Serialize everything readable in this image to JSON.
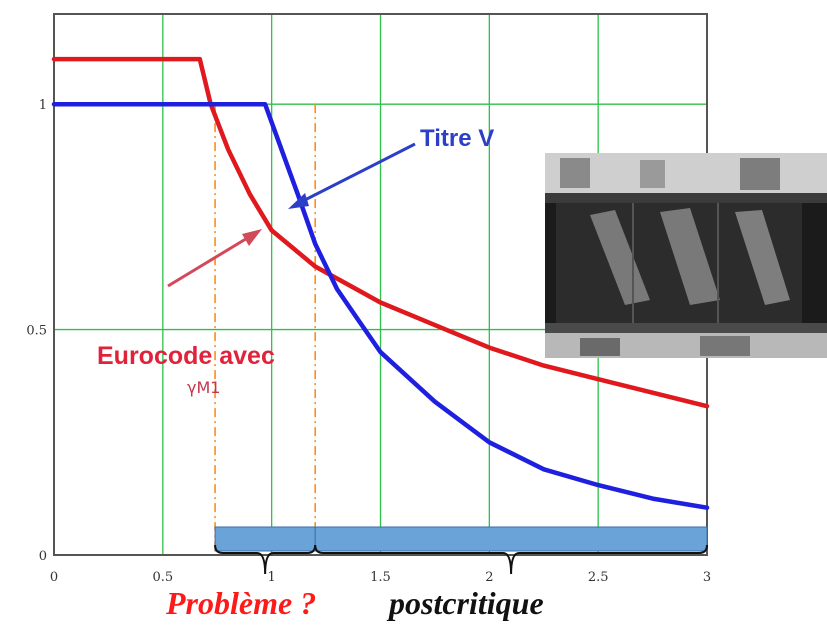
{
  "chart_data": {
    "type": "line",
    "xlim": [
      0,
      3
    ],
    "ylim": [
      0,
      1.2
    ],
    "grid": true,
    "x_ticks": [
      0,
      0.5,
      1,
      1.5,
      2,
      2.5,
      3
    ],
    "x_tick_labels": [
      "0",
      "0.5",
      "1",
      "1.5",
      "2",
      "2.5",
      "3"
    ],
    "y_ticks": [
      0,
      0.5,
      1
    ],
    "y_tick_labels": [
      "0",
      "0.5",
      "1"
    ],
    "series": [
      {
        "name": "Eurocode avec",
        "color": "#e0191e",
        "points": [
          [
            0,
            1.1
          ],
          [
            0.67,
            1.1
          ],
          [
            0.72,
            1.0
          ],
          [
            0.8,
            0.9
          ],
          [
            0.9,
            0.8
          ],
          [
            1.0,
            0.72
          ],
          [
            1.1,
            0.68
          ],
          [
            1.2,
            0.64
          ],
          [
            1.35,
            0.6
          ],
          [
            1.5,
            0.56
          ],
          [
            1.75,
            0.51
          ],
          [
            2.0,
            0.46
          ],
          [
            2.25,
            0.42
          ],
          [
            2.5,
            0.39
          ],
          [
            2.75,
            0.36
          ],
          [
            3.0,
            0.33
          ]
        ]
      },
      {
        "name": "Titre V",
        "color": "#1f1fe0",
        "points": [
          [
            0,
            1.0
          ],
          [
            0.97,
            1.0
          ],
          [
            1.06,
            0.88
          ],
          [
            1.12,
            0.8
          ],
          [
            1.2,
            0.69
          ],
          [
            1.3,
            0.59
          ],
          [
            1.4,
            0.52
          ],
          [
            1.5,
            0.45
          ],
          [
            1.75,
            0.34
          ],
          [
            2.0,
            0.25
          ],
          [
            2.25,
            0.19
          ],
          [
            2.5,
            0.155
          ],
          [
            2.75,
            0.125
          ],
          [
            3.0,
            0.105
          ]
        ]
      }
    ],
    "vlines": [
      0.74,
      1.2
    ],
    "ranges": [
      [
        0.74,
        1.2
      ],
      [
        1.2,
        3.0
      ]
    ]
  },
  "annotations": {
    "titre_v": "Titre V",
    "eurocode": "Eurocode avec",
    "gamma": "γM1"
  },
  "captions": {
    "left": "Problème ?",
    "right": "postcritique"
  },
  "colors": {
    "grid": "#2fc04a",
    "range_bar": "#6aa3d8",
    "vline": "#ff8c1a"
  }
}
